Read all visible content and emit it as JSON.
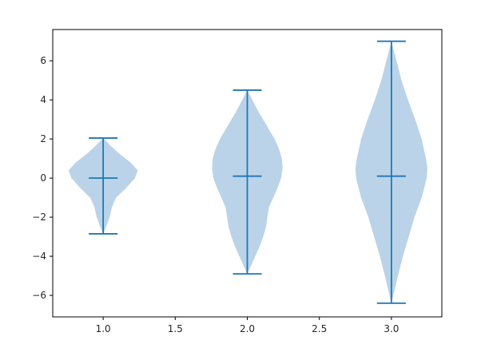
{
  "chart_data": {
    "type": "violin",
    "title": "",
    "xlabel": "",
    "ylabel": "",
    "xlim": [
      0.65,
      3.35
    ],
    "ylim": [
      -7.1,
      7.6
    ],
    "x_ticks": [
      {
        "value": 1.0,
        "label": "1.0"
      },
      {
        "value": 1.5,
        "label": "1.5"
      },
      {
        "value": 2.0,
        "label": "2.0"
      },
      {
        "value": 2.5,
        "label": "2.5"
      },
      {
        "value": 3.0,
        "label": "3.0"
      }
    ],
    "y_ticks": [
      {
        "value": -6,
        "label": "−6"
      },
      {
        "value": -4,
        "label": "−4"
      },
      {
        "value": -2,
        "label": "−2"
      },
      {
        "value": 0,
        "label": "0"
      },
      {
        "value": 2,
        "label": "2"
      },
      {
        "value": 4,
        "label": "4"
      },
      {
        "value": 6,
        "label": "6"
      }
    ],
    "grid": false,
    "colors": {
      "body": "#a9c8e3",
      "line": "#1f77b4",
      "frame": "#000000"
    },
    "violins": [
      {
        "position": 1.0,
        "min": -2.85,
        "max": 2.05,
        "median": 0.0,
        "profile": [
          [
            -2.85,
            0.0
          ],
          [
            -2.5,
            0.02
          ],
          [
            -2.0,
            0.045
          ],
          [
            -1.5,
            0.06
          ],
          [
            -1.0,
            0.09
          ],
          [
            -0.5,
            0.16
          ],
          [
            0.0,
            0.22
          ],
          [
            0.4,
            0.24
          ],
          [
            0.8,
            0.19
          ],
          [
            1.2,
            0.12
          ],
          [
            1.6,
            0.06
          ],
          [
            2.05,
            0.0
          ]
        ]
      },
      {
        "position": 2.0,
        "min": -4.9,
        "max": 4.5,
        "median": 0.1,
        "profile": [
          [
            -4.9,
            0.0
          ],
          [
            -4.5,
            0.025
          ],
          [
            -4.0,
            0.055
          ],
          [
            -3.5,
            0.085
          ],
          [
            -3.0,
            0.11
          ],
          [
            -2.5,
            0.13
          ],
          [
            -2.0,
            0.14
          ],
          [
            -1.5,
            0.15
          ],
          [
            -1.0,
            0.18
          ],
          [
            -0.5,
            0.21
          ],
          [
            0.0,
            0.235
          ],
          [
            0.5,
            0.245
          ],
          [
            1.0,
            0.24
          ],
          [
            1.5,
            0.22
          ],
          [
            2.0,
            0.19
          ],
          [
            2.5,
            0.15
          ],
          [
            3.0,
            0.11
          ],
          [
            3.5,
            0.07
          ],
          [
            4.0,
            0.035
          ],
          [
            4.5,
            0.0
          ]
        ]
      },
      {
        "position": 3.0,
        "min": -6.4,
        "max": 7.0,
        "median": 0.1,
        "profile": [
          [
            -6.4,
            0.0
          ],
          [
            -5.8,
            0.02
          ],
          [
            -5.0,
            0.045
          ],
          [
            -4.0,
            0.08
          ],
          [
            -3.0,
            0.12
          ],
          [
            -2.0,
            0.16
          ],
          [
            -1.0,
            0.21
          ],
          [
            0.0,
            0.245
          ],
          [
            0.5,
            0.25
          ],
          [
            1.0,
            0.24
          ],
          [
            2.0,
            0.21
          ],
          [
            3.0,
            0.165
          ],
          [
            4.0,
            0.115
          ],
          [
            5.0,
            0.07
          ],
          [
            6.0,
            0.035
          ],
          [
            7.0,
            0.0
          ]
        ]
      }
    ]
  }
}
